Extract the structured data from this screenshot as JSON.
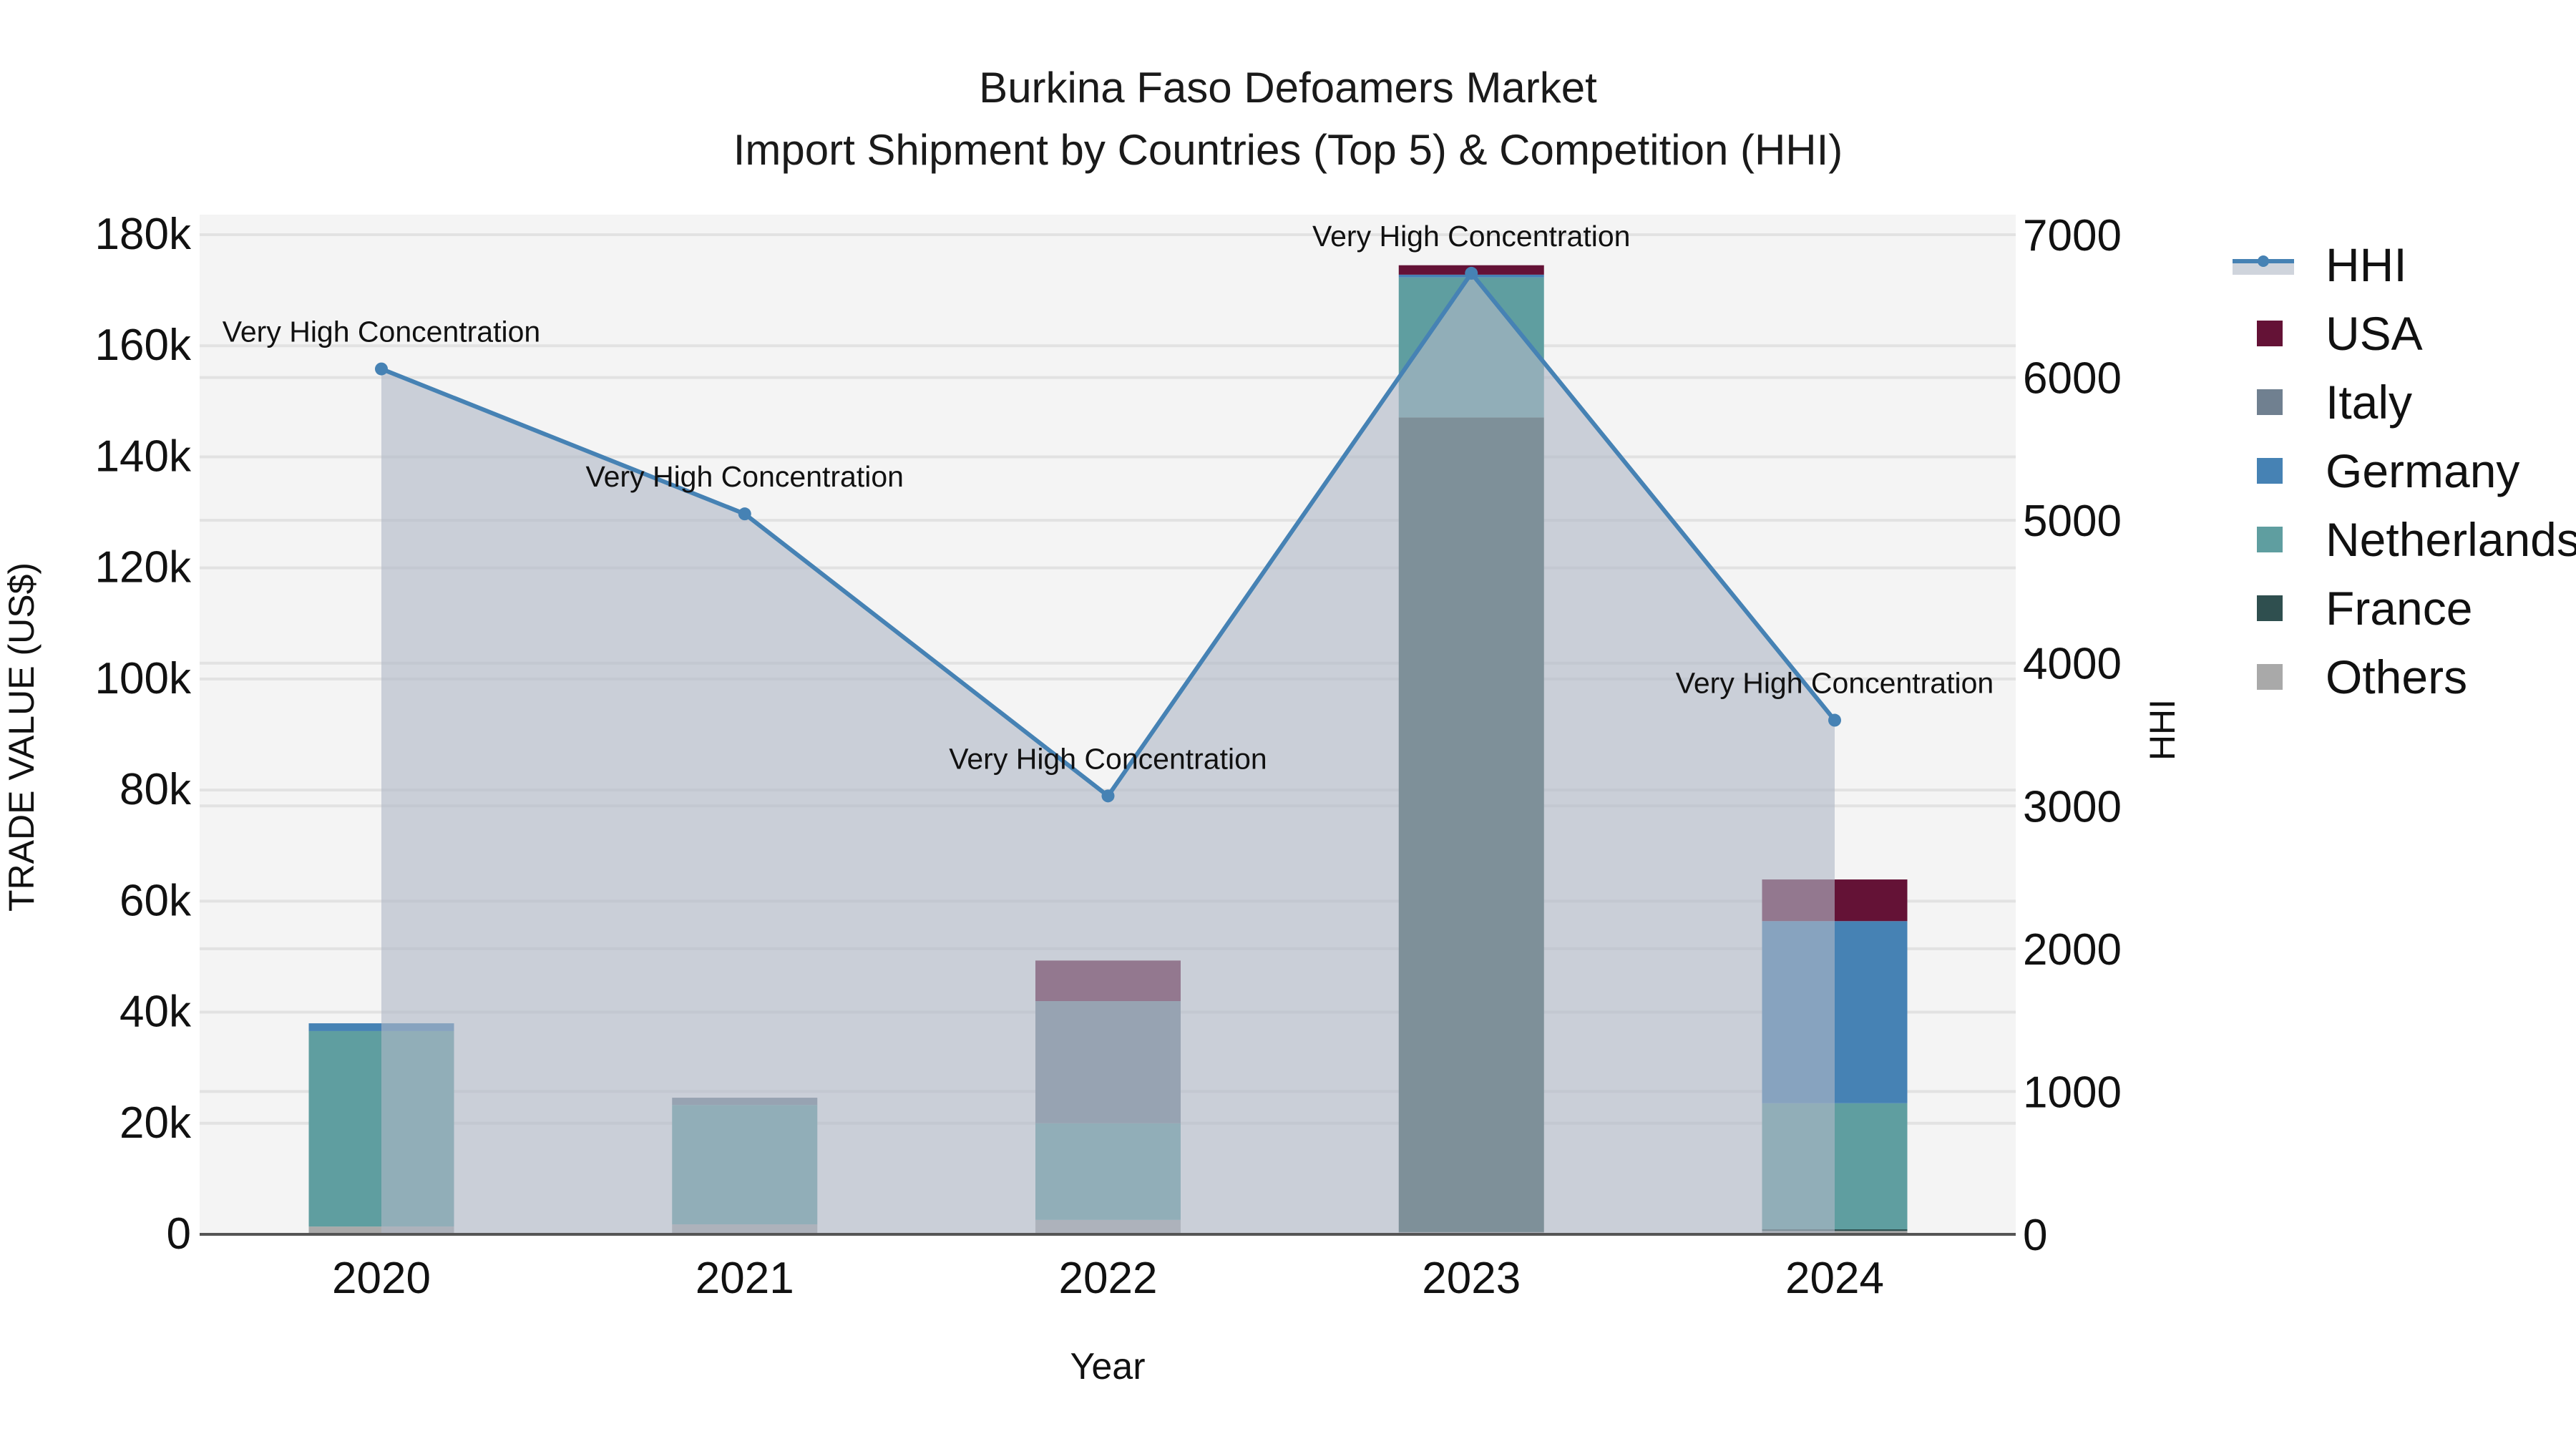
{
  "title": {
    "line1": "Burkina Faso Defoamers Market",
    "line2": "Import Shipment by Countries (Top 5) & Competition (HHI)"
  },
  "axes": {
    "x_title": "Year",
    "y_title": "TRADE VALUE (US$)",
    "y2_title": "HHI",
    "y_ticks": [
      "0",
      "20k",
      "40k",
      "60k",
      "80k",
      "100k",
      "120k",
      "140k",
      "160k",
      "180k"
    ],
    "y2_ticks": [
      "0",
      "1000",
      "2000",
      "3000",
      "4000",
      "5000",
      "6000",
      "7000"
    ]
  },
  "legend": {
    "items": [
      {
        "label": "HHI",
        "type": "line",
        "color": "#4682b4"
      },
      {
        "label": "USA",
        "type": "box",
        "color": "#641236"
      },
      {
        "label": "Italy",
        "type": "box",
        "color": "#708090"
      },
      {
        "label": "Germany",
        "type": "box",
        "color": "#4682b4"
      },
      {
        "label": "Netherlands",
        "type": "box",
        "color": "#5f9ea0"
      },
      {
        "label": "France",
        "type": "box",
        "color": "#2f4f4f"
      },
      {
        "label": "Others",
        "type": "box",
        "color": "#a9a9a9"
      }
    ]
  },
  "chart_data": {
    "type": "bar",
    "title": "Burkina Faso Defoamers Market — Import Shipment by Countries (Top 5) & Competition (HHI)",
    "xlabel": "Year",
    "ylabel": "TRADE VALUE (US$)",
    "y2label": "HHI",
    "ylim": [
      0,
      180000
    ],
    "y2lim": [
      0,
      7000
    ],
    "barmode": "stack",
    "grid": true,
    "legend_position": "right",
    "categories": [
      "2020",
      "2021",
      "2022",
      "2023",
      "2024"
    ],
    "series": [
      {
        "name": "Others",
        "color": "#a9a9a9",
        "values": [
          1400,
          1800,
          2600,
          400,
          600
        ]
      },
      {
        "name": "France",
        "color": "#2f4f4f",
        "values": [
          0,
          0,
          0,
          146700,
          300
        ]
      },
      {
        "name": "Netherlands",
        "color": "#5f9ea0",
        "values": [
          35200,
          21500,
          17400,
          25200,
          22700
        ]
      },
      {
        "name": "Germany",
        "color": "#4682b4",
        "values": [
          1400,
          0,
          0,
          500,
          32800
        ]
      },
      {
        "name": "Italy",
        "color": "#708090",
        "values": [
          0,
          1300,
          22000,
          0,
          0
        ]
      },
      {
        "name": "USA",
        "color": "#641236",
        "values": [
          0,
          0,
          7300,
          1700,
          7500
        ]
      }
    ],
    "hhi": {
      "name": "HHI",
      "type": "line+area",
      "axis": "y2",
      "color": "#4682b4",
      "values": [
        6060,
        5045,
        3070,
        6730,
        3600
      ],
      "annotations": [
        "Very High Concentration",
        "Very High Concentration",
        "Very High Concentration",
        "Very High Concentration",
        "Very High Concentration"
      ]
    }
  }
}
